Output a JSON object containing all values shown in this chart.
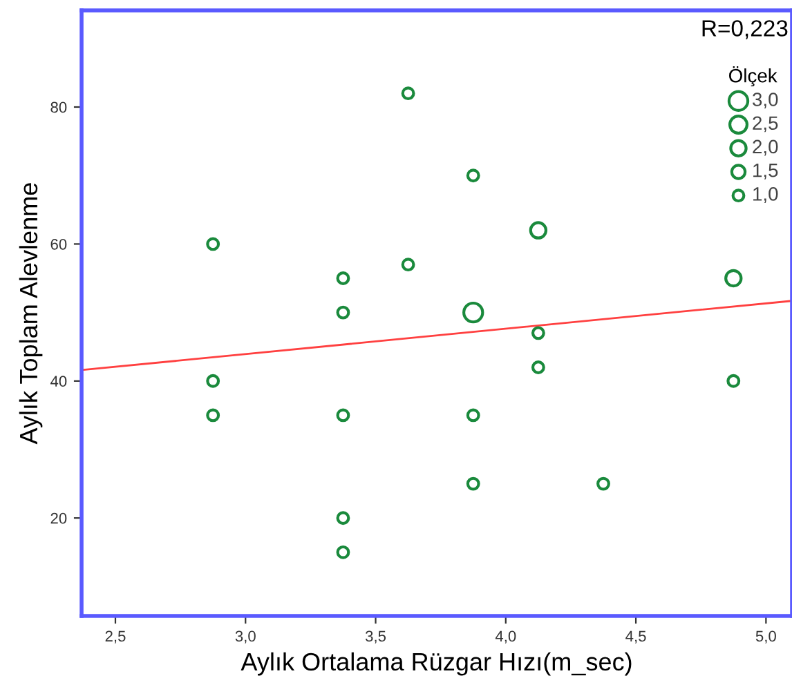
{
  "chart_data": {
    "type": "bubble",
    "xlabel": "Aylık Ortalama Rüzgar Hızı(m_sec)",
    "ylabel": "Aylık Toplam Alevlenme",
    "legend_title": "Ölçek",
    "annotations": [
      "R=0,223"
    ],
    "series": [
      {
        "color": "#1a8a3c",
        "x": [
          2.875,
          2.875,
          2.875,
          3.375,
          3.375,
          3.375,
          3.375,
          3.375,
          3.625,
          3.625,
          3.875,
          3.875,
          3.875,
          3.875,
          4.125,
          4.125,
          4.125,
          4.375,
          4.875,
          4.875
        ],
        "values": [
          60,
          40,
          35,
          55,
          50,
          35,
          20,
          15,
          82,
          57,
          70,
          50,
          35,
          25,
          62,
          47,
          42,
          25,
          55,
          40
        ],
        "sizes": [
          1.0,
          1.0,
          1.0,
          1.0,
          1.0,
          1.0,
          1.0,
          1.0,
          1.0,
          1.0,
          1.0,
          3.0,
          1.0,
          1.0,
          2.0,
          1.0,
          1.0,
          1.0,
          2.0,
          1.0
        ]
      },
      {
        "type": "line",
        "color": "#ff4040",
        "x": [
          2.37,
          5.1
        ],
        "values": [
          41.6,
          51.7
        ]
      }
    ],
    "size_legend": [
      {
        "value": 3.0,
        "label": "3,0"
      },
      {
        "value": 2.5,
        "label": "2,5"
      },
      {
        "value": 2.0,
        "label": "2,0"
      },
      {
        "value": 1.5,
        "label": "1,5"
      },
      {
        "value": 1.0,
        "label": "1,0"
      }
    ],
    "grid": false,
    "xlim": [
      2.37,
      5.1
    ],
    "ylim": [
      5.7,
      94.1
    ],
    "xticks": [
      {
        "value": 2.5,
        "label": "2,5"
      },
      {
        "value": 3.0,
        "label": "3,0"
      },
      {
        "value": 3.5,
        "label": "3,5"
      },
      {
        "value": 4.0,
        "label": "4,0"
      },
      {
        "value": 4.5,
        "label": "4,5"
      },
      {
        "value": 5.0,
        "label": "5,0"
      }
    ],
    "yticks": [
      20,
      40,
      60,
      80
    ]
  }
}
